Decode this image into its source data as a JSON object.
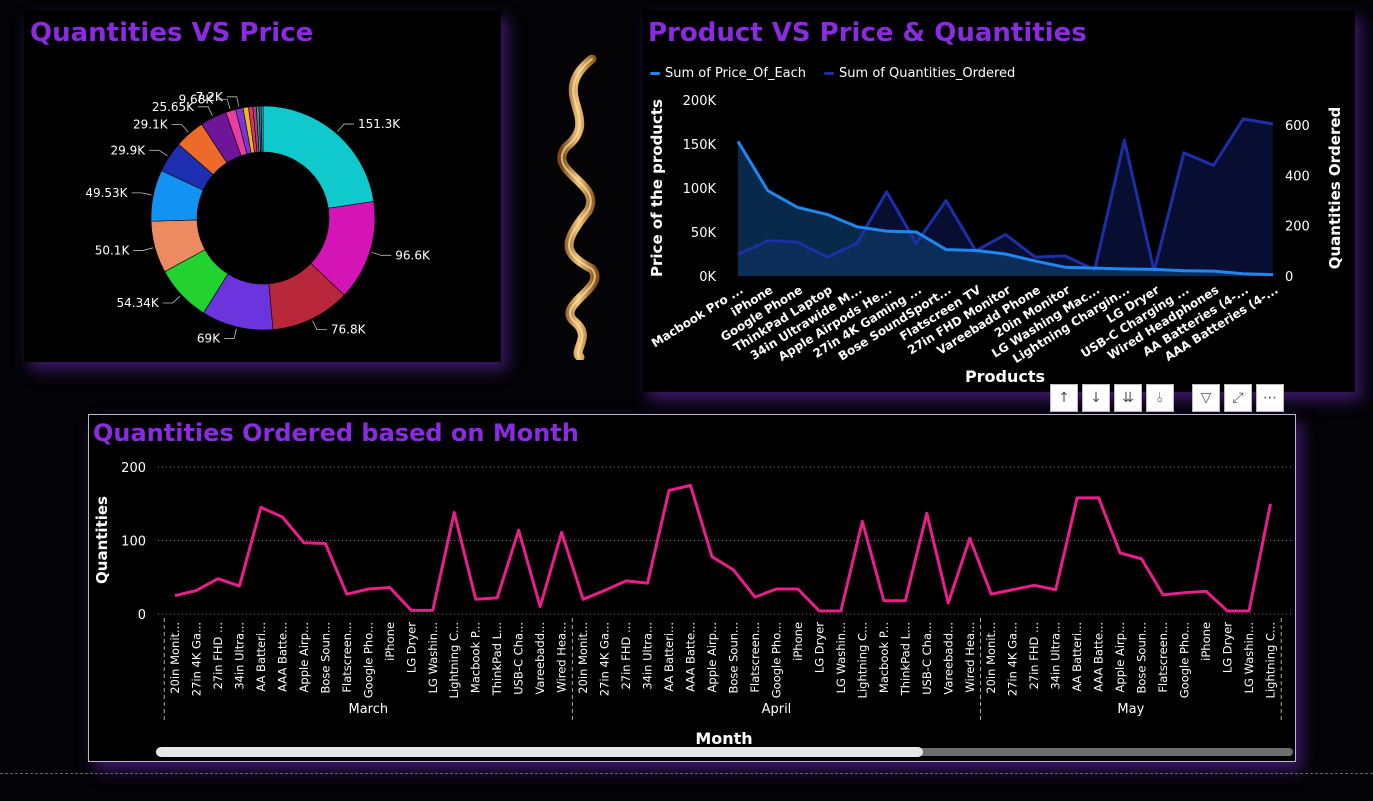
{
  "donut": {
    "title": "Quantities VS Price",
    "chart_data": {
      "type": "pie",
      "values": [
        151300,
        96600,
        76800,
        69000,
        54340,
        50100,
        49530,
        29900,
        29100,
        25650,
        9680,
        7200,
        5200,
        4200,
        3300,
        2600,
        2100,
        1700
      ],
      "labels": [
        "151.3K",
        "96.6K",
        "76.8K",
        "69K",
        "54.34K",
        "50.1K",
        "49.53K",
        "29.9K",
        "29.1K",
        "25.65K",
        "9.68K",
        "7.2K",
        "",
        "",
        "",
        "",
        "",
        ""
      ],
      "colors": [
        "#0fc9cc",
        "#d414b4",
        "#b8283a",
        "#6b34dc",
        "#23d12f",
        "#ec8a62",
        "#1293f4",
        "#1d2fb0",
        "#ee6a2a",
        "#6e1599",
        "#e83ea0",
        "#7a34d8",
        "#f0b820",
        "#d8374f",
        "#b0339e",
        "#2aa858",
        "#4a57d8",
        "#2ac9b8"
      ]
    }
  },
  "combo": {
    "title": "Product VS Price & Quantities",
    "legend": [
      {
        "label": "Sum of Price_Of_Each",
        "color": "#1e88f0"
      },
      {
        "label": "Sum of Quantities_Ordered",
        "color": "#1b2fa6"
      }
    ],
    "chart_data": {
      "type": "line",
      "categories": [
        "Macbook Pro ...",
        "iPhone",
        "Google Phone",
        "ThinkPad Laptop",
        "34in Ultrawide M...",
        "Apple Airpods He...",
        "27in 4K Gaming ...",
        "Bose SoundSport...",
        "Flatscreen TV",
        "27in FHD Monitor",
        "Vareebadd Phone",
        "20in Monitor",
        "LG Washing Mac...",
        "Lightning Chargin...",
        "LG Dryer",
        "USB-C Charging ...",
        "Wired Headphones",
        "AA Batteries (4-...",
        "AAA Batteries (4-..."
      ],
      "series": [
        {
          "name": "Sum of Price_Of_Each",
          "axis": "left",
          "values": [
            153000,
            97000,
            78000,
            70000,
            56000,
            51000,
            50000,
            30000,
            29000,
            25000,
            17000,
            10000,
            9000,
            8000,
            7500,
            6000,
            5500,
            2500,
            1500
          ]
        },
        {
          "name": "Sum of Quantities_Ordered",
          "axis": "right",
          "values": [
            85,
            140,
            135,
            75,
            130,
            335,
            130,
            300,
            100,
            165,
            75,
            80,
            25,
            540,
            20,
            490,
            440,
            625,
            605
          ]
        }
      ],
      "xlabel": "Products",
      "ylabel": "Price of the products",
      "y2label": "Quantities Ordered",
      "ylim": [
        0,
        200000
      ],
      "y2lim": [
        0,
        700
      ],
      "yticks": [
        "0K",
        "50K",
        "100K",
        "150K",
        "200K"
      ],
      "y2ticks": [
        "0",
        "200",
        "400",
        "600"
      ]
    }
  },
  "toolbar": {
    "icons": [
      "arrow-up-icon",
      "arrow-down-icon",
      "double-arrow-down-icon",
      "expand-hierarchy-icon",
      "filter-icon",
      "focus-mode-icon",
      "more-options-icon"
    ],
    "glyphs": [
      "↑",
      "↓",
      "⇊",
      "⫰",
      "▽",
      "⤢",
      "⋯"
    ]
  },
  "monthly": {
    "title": "Quantities Ordered based on Month",
    "chart_data": {
      "type": "line",
      "color": "#e91e8c",
      "xlabel": "Month",
      "ylabel": "Quantities",
      "ylim": [
        0,
        200
      ],
      "yticks": [
        "0",
        "100",
        "200"
      ],
      "groups": [
        {
          "name": "March",
          "categories": [
            "20in Monit...",
            "27in 4K Ga...",
            "27in FHD ...",
            "34in Ultra...",
            "AA Batteri...",
            "AAA Batte...",
            "Apple Airp...",
            "Bose Soun...",
            "Flatscreen...",
            "Google Pho...",
            "iPhone",
            "LG Dryer",
            "LG Washin...",
            "Lightning C...",
            "Macbook P...",
            "ThinkPad L...",
            "USB-C Cha...",
            "Vareebadd...",
            "Wired Hea..."
          ],
          "values": [
            25,
            32,
            48,
            38,
            145,
            132,
            97,
            96,
            27,
            34,
            36,
            5,
            5,
            138,
            20,
            22,
            114,
            10,
            111
          ]
        },
        {
          "name": "April",
          "categories": [
            "20in Monit...",
            "27in 4K Ga...",
            "27in FHD ...",
            "34in Ultra...",
            "AA Batteri...",
            "AAA Batte...",
            "Apple Airp...",
            "Bose Soun...",
            "Flatscreen...",
            "Google Pho...",
            "iPhone",
            "LG Dryer",
            "LG Washin...",
            "Lightning C...",
            "Macbook P...",
            "ThinkPad L...",
            "USB-C Cha...",
            "Vareebadd...",
            "Wired Hea..."
          ],
          "values": [
            20,
            32,
            45,
            42,
            168,
            175,
            78,
            60,
            23,
            34,
            34,
            4,
            4,
            126,
            18,
            18,
            137,
            15,
            103
          ]
        },
        {
          "name": "May",
          "categories": [
            "20in Monit...",
            "27in 4K Ga...",
            "27in FHD ...",
            "34in Ultra...",
            "AA Batteri...",
            "AAA Batte...",
            "Apple Airp...",
            "Bose Soun...",
            "Flatscreen...",
            "Google Pho...",
            "iPhone",
            "LG Dryer",
            "LG Washin...",
            "Lightning C..."
          ],
          "values": [
            27,
            33,
            39,
            33,
            158,
            158,
            83,
            75,
            26,
            29,
            31,
            4,
            4,
            150
          ]
        }
      ]
    }
  }
}
